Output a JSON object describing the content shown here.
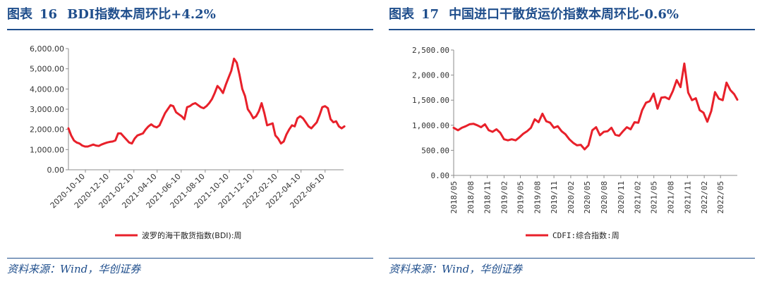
{
  "panels": [
    {
      "title_prefix": "图表",
      "title_num": "16",
      "title_text": "BDI指数本周环比+4.2%",
      "source": "资料来源：Wind，华创证券"
    },
    {
      "title_prefix": "图表",
      "title_num": "17",
      "title_text": "中国进口干散货运价指数本周环比-0.6%",
      "source": "资料来源：Wind，华创证券"
    }
  ],
  "chart_data": [
    {
      "type": "line",
      "title": "",
      "color": "#e8202a",
      "y_ticks": [
        "0.00",
        "1,000.00",
        "2,000.00",
        "3,000.00",
        "4,000.00",
        "5,000.00",
        "6,000.00"
      ],
      "ylim": [
        0,
        6000
      ],
      "x_ticks": [
        "2020-10-10",
        "2020-12-10",
        "2021-02-10",
        "2021-04-10",
        "2021-06-10",
        "2021-08-10",
        "2021-10-10",
        "2021-12-10",
        "2022-02-10",
        "2022-04-10",
        "2022-06-10"
      ],
      "xlim": [
        "2020-08-28",
        "2022-07-27"
      ],
      "series": [
        {
          "name": "波罗的海干散货指数(BDI):周",
          "points": [
            [
              "2020-08-28",
              2050
            ],
            [
              "2020-09-04",
              1700
            ],
            [
              "2020-09-11",
              1450
            ],
            [
              "2020-09-18",
              1350
            ],
            [
              "2020-09-25",
              1300
            ],
            [
              "2020-10-02",
              1200
            ],
            [
              "2020-10-09",
              1150
            ],
            [
              "2020-10-16",
              1150
            ],
            [
              "2020-10-23",
              1200
            ],
            [
              "2020-10-30",
              1250
            ],
            [
              "2020-11-06",
              1200
            ],
            [
              "2020-11-13",
              1180
            ],
            [
              "2020-11-20",
              1250
            ],
            [
              "2020-11-27",
              1300
            ],
            [
              "2020-12-04",
              1350
            ],
            [
              "2020-12-11",
              1380
            ],
            [
              "2020-12-18",
              1400
            ],
            [
              "2020-12-25",
              1450
            ],
            [
              "2021-01-01",
              1800
            ],
            [
              "2021-01-08",
              1800
            ],
            [
              "2021-01-15",
              1650
            ],
            [
              "2021-01-22",
              1500
            ],
            [
              "2021-01-29",
              1350
            ],
            [
              "2021-02-05",
              1300
            ],
            [
              "2021-02-12",
              1550
            ],
            [
              "2021-02-19",
              1700
            ],
            [
              "2021-02-26",
              1750
            ],
            [
              "2021-03-05",
              1800
            ],
            [
              "2021-03-12",
              2000
            ],
            [
              "2021-03-19",
              2150
            ],
            [
              "2021-03-26",
              2250
            ],
            [
              "2021-04-02",
              2150
            ],
            [
              "2021-04-09",
              2100
            ],
            [
              "2021-04-16",
              2200
            ],
            [
              "2021-04-23",
              2500
            ],
            [
              "2021-04-30",
              2800
            ],
            [
              "2021-05-07",
              3000
            ],
            [
              "2021-05-14",
              3200
            ],
            [
              "2021-05-21",
              3150
            ],
            [
              "2021-05-28",
              2850
            ],
            [
              "2021-06-04",
              2750
            ],
            [
              "2021-06-11",
              2650
            ],
            [
              "2021-06-18",
              2500
            ],
            [
              "2021-06-25",
              3100
            ],
            [
              "2021-07-02",
              3150
            ],
            [
              "2021-07-09",
              3250
            ],
            [
              "2021-07-16",
              3300
            ],
            [
              "2021-07-23",
              3200
            ],
            [
              "2021-07-30",
              3100
            ],
            [
              "2021-08-06",
              3050
            ],
            [
              "2021-08-13",
              3150
            ],
            [
              "2021-08-20",
              3300
            ],
            [
              "2021-08-27",
              3500
            ],
            [
              "2021-09-03",
              3800
            ],
            [
              "2021-09-10",
              4150
            ],
            [
              "2021-09-17",
              4000
            ],
            [
              "2021-09-24",
              3800
            ],
            [
              "2021-10-01",
              4200
            ],
            [
              "2021-10-08",
              4550
            ],
            [
              "2021-10-15",
              4900
            ],
            [
              "2021-10-22",
              5500
            ],
            [
              "2021-10-29",
              5300
            ],
            [
              "2021-11-05",
              4700
            ],
            [
              "2021-11-12",
              4000
            ],
            [
              "2021-11-19",
              3650
            ],
            [
              "2021-11-26",
              3000
            ],
            [
              "2021-12-03",
              2800
            ],
            [
              "2021-12-10",
              2550
            ],
            [
              "2021-12-17",
              2650
            ],
            [
              "2021-12-24",
              2900
            ],
            [
              "2021-12-31",
              3300
            ],
            [
              "2022-01-07",
              2800
            ],
            [
              "2022-01-14",
              2200
            ],
            [
              "2022-01-21",
              2250
            ],
            [
              "2022-01-28",
              2300
            ],
            [
              "2022-02-04",
              1700
            ],
            [
              "2022-02-11",
              1550
            ],
            [
              "2022-02-18",
              1300
            ],
            [
              "2022-02-25",
              1400
            ],
            [
              "2022-03-04",
              1750
            ],
            [
              "2022-03-11",
              2000
            ],
            [
              "2022-03-18",
              2200
            ],
            [
              "2022-03-25",
              2150
            ],
            [
              "2022-04-01",
              2550
            ],
            [
              "2022-04-08",
              2650
            ],
            [
              "2022-04-15",
              2550
            ],
            [
              "2022-04-22",
              2350
            ],
            [
              "2022-04-29",
              2150
            ],
            [
              "2022-05-06",
              2050
            ],
            [
              "2022-05-13",
              2200
            ],
            [
              "2022-05-20",
              2350
            ],
            [
              "2022-05-27",
              2700
            ],
            [
              "2022-06-03",
              3100
            ],
            [
              "2022-06-10",
              3150
            ],
            [
              "2022-06-17",
              3050
            ],
            [
              "2022-06-24",
              2500
            ],
            [
              "2022-07-01",
              2350
            ],
            [
              "2022-07-08",
              2400
            ],
            [
              "2022-07-15",
              2150
            ],
            [
              "2022-07-22",
              2050
            ],
            [
              "2022-07-29",
              2150
            ]
          ]
        }
      ]
    },
    {
      "type": "line",
      "title": "",
      "color": "#e8202a",
      "y_ticks": [
        "0.00",
        "500.00",
        "1,000.00",
        "1,500.00",
        "2,000.00",
        "2,500.00"
      ],
      "ylim": [
        0,
        2500
      ],
      "x_ticks": [
        "2018/05",
        "2018/08",
        "2018/11",
        "2019/02",
        "2019/05",
        "2019/08",
        "2019/11",
        "2020/02",
        "2020/05",
        "2020/08",
        "2020/11",
        "2021/02",
        "2021/05",
        "2021/08",
        "2021/11",
        "2022/02",
        "2022/05"
      ],
      "xlim": [
        "2018-05-01",
        "2022-08-01"
      ],
      "series": [
        {
          "name": "CDFI:综合指数:周",
          "points": [
            [
              "2018-05-01",
              950
            ],
            [
              "2018-05-25",
              900
            ],
            [
              "2018-06-15",
              950
            ],
            [
              "2018-07-06",
              980
            ],
            [
              "2018-07-27",
              1020
            ],
            [
              "2018-08-17",
              1030
            ],
            [
              "2018-09-07",
              1000
            ],
            [
              "2018-09-28",
              960
            ],
            [
              "2018-10-19",
              1020
            ],
            [
              "2018-11-09",
              900
            ],
            [
              "2018-11-30",
              870
            ],
            [
              "2018-12-21",
              920
            ],
            [
              "2019-01-11",
              850
            ],
            [
              "2019-02-01",
              720
            ],
            [
              "2019-02-22",
              700
            ],
            [
              "2019-03-15",
              720
            ],
            [
              "2019-04-05",
              700
            ],
            [
              "2019-04-26",
              760
            ],
            [
              "2019-05-17",
              830
            ],
            [
              "2019-06-07",
              880
            ],
            [
              "2019-06-28",
              950
            ],
            [
              "2019-07-19",
              1120
            ],
            [
              "2019-08-09",
              1060
            ],
            [
              "2019-08-30",
              1230
            ],
            [
              "2019-09-20",
              1080
            ],
            [
              "2019-10-11",
              1050
            ],
            [
              "2019-11-01",
              950
            ],
            [
              "2019-11-22",
              980
            ],
            [
              "2019-12-13",
              880
            ],
            [
              "2020-01-03",
              820
            ],
            [
              "2020-01-24",
              720
            ],
            [
              "2020-02-14",
              650
            ],
            [
              "2020-03-06",
              600
            ],
            [
              "2020-03-27",
              610
            ],
            [
              "2020-04-17",
              520
            ],
            [
              "2020-05-08",
              600
            ],
            [
              "2020-05-29",
              900
            ],
            [
              "2020-06-19",
              960
            ],
            [
              "2020-07-10",
              800
            ],
            [
              "2020-07-31",
              870
            ],
            [
              "2020-08-21",
              880
            ],
            [
              "2020-09-11",
              950
            ],
            [
              "2020-10-02",
              810
            ],
            [
              "2020-10-23",
              790
            ],
            [
              "2020-11-13",
              880
            ],
            [
              "2020-12-04",
              960
            ],
            [
              "2020-12-25",
              920
            ],
            [
              "2021-01-15",
              1060
            ],
            [
              "2021-02-05",
              1050
            ],
            [
              "2021-02-26",
              1300
            ],
            [
              "2021-03-19",
              1450
            ],
            [
              "2021-04-09",
              1480
            ],
            [
              "2021-04-30",
              1630
            ],
            [
              "2021-05-21",
              1330
            ],
            [
              "2021-06-11",
              1550
            ],
            [
              "2021-07-02",
              1560
            ],
            [
              "2021-07-23",
              1520
            ],
            [
              "2021-08-13",
              1680
            ],
            [
              "2021-09-03",
              1900
            ],
            [
              "2021-09-24",
              1760
            ],
            [
              "2021-10-15",
              2230
            ],
            [
              "2021-11-05",
              1650
            ],
            [
              "2021-11-26",
              1500
            ],
            [
              "2021-12-17",
              1540
            ],
            [
              "2022-01-07",
              1300
            ],
            [
              "2022-01-28",
              1250
            ],
            [
              "2022-02-18",
              1070
            ],
            [
              "2022-03-11",
              1280
            ],
            [
              "2022-04-01",
              1660
            ],
            [
              "2022-04-22",
              1530
            ],
            [
              "2022-05-13",
              1500
            ],
            [
              "2022-06-03",
              1850
            ],
            [
              "2022-06-24",
              1700
            ],
            [
              "2022-07-15",
              1620
            ],
            [
              "2022-08-01",
              1510
            ]
          ]
        }
      ]
    }
  ]
}
